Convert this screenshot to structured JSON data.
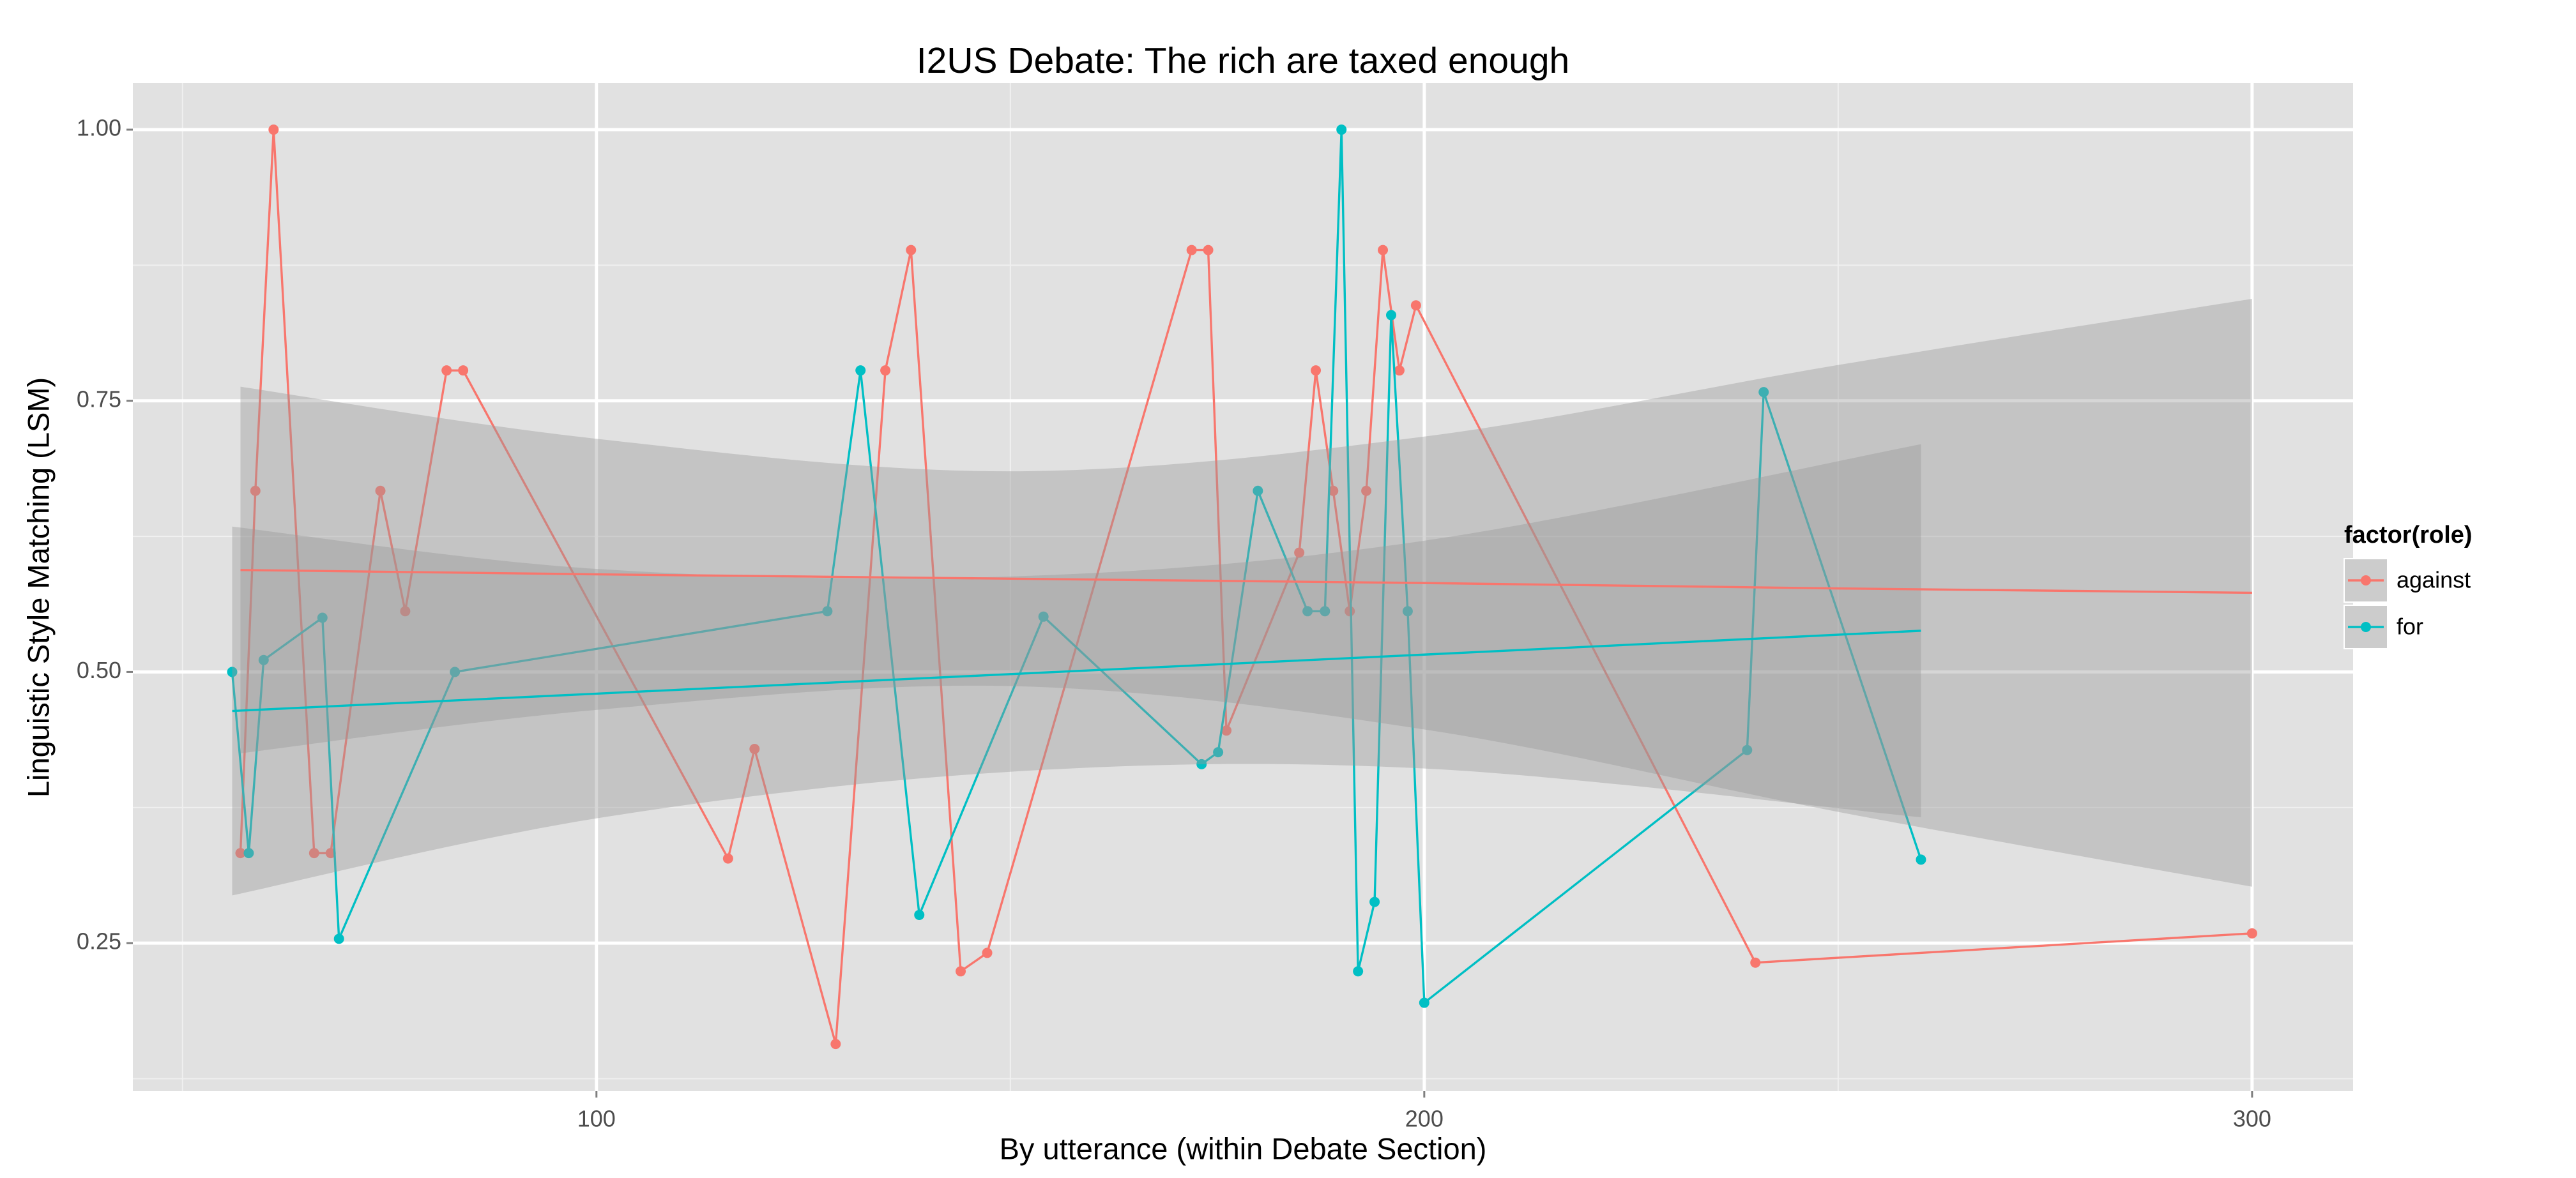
{
  "chart_data": {
    "type": "line",
    "title": "I2US Debate: The rich are taxed enough",
    "x_label": "By utterance (within Debate Section)",
    "y_label": "Linguistic Style Matching (LSM)",
    "legend_title": "factor(role)",
    "legend_position": "right",
    "grid": true,
    "xlim": [
      44,
      312.2
    ],
    "ylim": [
      0.1135,
      1.043
    ],
    "xticks": [
      100,
      200,
      300
    ],
    "yticks": [
      0.25,
      {
        "value": 0.5,
        "label": "0.50"
      },
      0.75,
      {
        "value": 1.0,
        "label": "1.00"
      }
    ],
    "series": [
      {
        "name": "against",
        "color": "#F8766D",
        "x": [
          57.0,
          58.8,
          61.0,
          65.9,
          67.9,
          73.9,
          76.9,
          81.9,
          83.9,
          115.9,
          119.1,
          128.9,
          134.9,
          138.0,
          144.0,
          147.2,
          171.9,
          173.9,
          176.1,
          184.9,
          186.9,
          189.0,
          191.0,
          193.0,
          195.0,
          197.0,
          199.0,
          240.0,
          300.0
        ],
        "values": [
          0.333,
          0.667,
          1.0,
          0.333,
          0.333,
          0.667,
          0.556,
          0.778,
          0.778,
          0.328,
          0.429,
          0.157,
          0.778,
          0.889,
          0.224,
          0.241,
          0.889,
          0.889,
          0.446,
          0.61,
          0.778,
          0.667,
          0.556,
          0.667,
          0.889,
          0.778,
          0.838,
          0.232,
          0.259
        ],
        "trend": {
          "x": [
            57,
            100,
            150,
            200,
            250,
            300
          ],
          "values": [
            0.594,
            0.59,
            0.586,
            0.582,
            0.577,
            0.573
          ],
          "lower": [
            0.425,
            0.465,
            0.487,
            0.447,
            0.371,
            0.302
          ],
          "upper": [
            0.763,
            0.715,
            0.685,
            0.717,
            0.783,
            0.844
          ]
        }
      },
      {
        "name": "for",
        "color": "#00BFC4",
        "x": [
          56.0,
          58.0,
          59.8,
          66.9,
          68.9,
          82.9,
          127.9,
          131.9,
          139.0,
          154.0,
          173.1,
          175.1,
          179.9,
          185.9,
          188.0,
          190.0,
          192.0,
          194.0,
          196.0,
          198.0,
          200.0,
          239.0,
          241.0,
          260.0
        ],
        "values": [
          0.5,
          0.333,
          0.511,
          0.55,
          0.254,
          0.5,
          0.556,
          0.778,
          0.276,
          0.551,
          0.415,
          0.426,
          0.667,
          0.556,
          0.556,
          1.0,
          0.224,
          0.288,
          0.829,
          0.556,
          0.195,
          0.428,
          0.758,
          0.327
        ],
        "trend": {
          "x": [
            56,
            100,
            150,
            200,
            260
          ],
          "values": [
            0.464,
            0.48,
            0.498,
            0.516,
            0.538
          ],
          "lower": [
            0.294,
            0.365,
            0.408,
            0.411,
            0.366
          ],
          "upper": [
            0.634,
            0.595,
            0.588,
            0.621,
            0.71
          ]
        }
      }
    ]
  }
}
